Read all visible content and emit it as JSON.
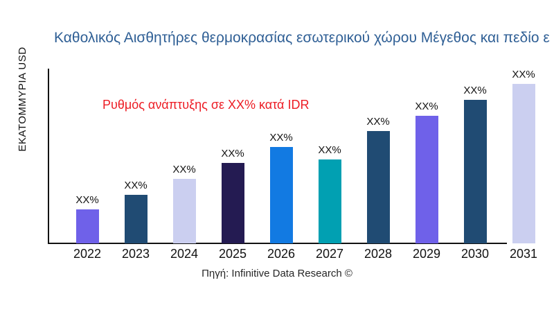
{
  "title": "Καθολικός Αισθητήρες θερμοκρασίας εσωτερικού χώρου Μέγεθος και πεδίο ε",
  "annotation": "Ρυθμός ανάπτυξης σε XX% κατά IDR",
  "source": "Πηγή: Infinitive Data Research ©",
  "colors": {
    "title": "#2F5F95",
    "annotation": "#ED1C24",
    "axis": "#121212",
    "purple": "#6F61E9",
    "navy": "#204B73",
    "lavender": "#CBCFF0",
    "dark_indigo": "#241B52",
    "bright_blue": "#127AE2",
    "teal": "#01A0B2"
  },
  "chart_data": {
    "type": "bar",
    "title": "Καθολικός Αισθητήρες θερμοκρασίας εσωτερικού χώρου Μέγεθος και πεδίο ε",
    "xlabel": "",
    "ylabel": "ΕΚΑΤΟΜΜΥΡΙΑ USD",
    "categories": [
      "2022",
      "2023",
      "2024",
      "2025",
      "2026",
      "2027",
      "2028",
      "2029",
      "2030",
      "2031"
    ],
    "values": [
      21.3,
      30.4,
      40.4,
      50.4,
      60.4,
      52.6,
      70.4,
      80,
      90,
      100
    ],
    "values_unit": "relative_height_percent_of_max",
    "value_labels": [
      "XX%",
      "XX%",
      "XX%",
      "XX%",
      "XX%",
      "XX%",
      "XX%",
      "XX%",
      "XX%",
      "XX%"
    ],
    "bar_colors": [
      "#6F61E9",
      "#204B73",
      "#CBCFF0",
      "#241B52",
      "#127AE2",
      "#01A0B2",
      "#204B73",
      "#6F61E9",
      "#204B73",
      "#CBCFF0"
    ],
    "annotation": "Ρυθμός ανάπτυξης σε XX% κατά IDR",
    "source": "Πηγή: Infinitive Data Research ©",
    "grid": false,
    "legend": false,
    "ylim": [
      0,
      100
    ]
  }
}
